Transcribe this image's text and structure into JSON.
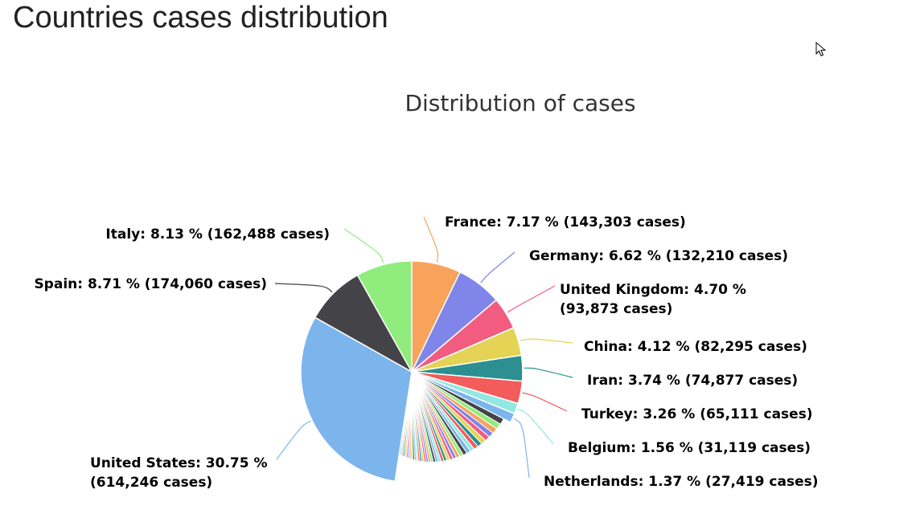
{
  "page": {
    "heading": "Countries cases distribution"
  },
  "chart_data": {
    "type": "pie",
    "title": "Distribution of cases",
    "series": [
      {
        "name": "United States",
        "percent": 30.75,
        "cases": 614246,
        "color": "#7cb5ec",
        "label_lines": [
          "United States: 30.75 %",
          "(614,246 cases)"
        ]
      },
      {
        "name": "Spain",
        "percent": 8.71,
        "cases": 174060,
        "color": "#434348",
        "label_lines": [
          "Spain: 8.71 % (174,060 cases)"
        ]
      },
      {
        "name": "Italy",
        "percent": 8.13,
        "cases": 162488,
        "color": "#90ed7d",
        "label_lines": [
          "Italy: 8.13 % (162,488 cases)"
        ]
      },
      {
        "name": "France",
        "percent": 7.17,
        "cases": 143303,
        "color": "#f7a35c",
        "label_lines": [
          "France: 7.17 % (143,303 cases)"
        ]
      },
      {
        "name": "Germany",
        "percent": 6.62,
        "cases": 132210,
        "color": "#8085e9",
        "label_lines": [
          "Germany: 6.62 % (132,210 cases)"
        ]
      },
      {
        "name": "United Kingdom",
        "percent": 4.7,
        "cases": 93873,
        "color": "#f15c80",
        "label_lines": [
          "United Kingdom: 4.70 %",
          "(93,873 cases)"
        ]
      },
      {
        "name": "China",
        "percent": 4.12,
        "cases": 82295,
        "color": "#e4d354",
        "label_lines": [
          "China: 4.12 % (82,295 cases)"
        ]
      },
      {
        "name": "Iran",
        "percent": 3.74,
        "cases": 74877,
        "color": "#2b908f",
        "label_lines": [
          "Iran: 3.74 % (74,877 cases)"
        ]
      },
      {
        "name": "Turkey",
        "percent": 3.26,
        "cases": 65111,
        "color": "#f45b5b",
        "label_lines": [
          "Turkey: 3.26 % (65,111 cases)"
        ]
      },
      {
        "name": "Belgium",
        "percent": 1.56,
        "cases": 31119,
        "color": "#91e8e1",
        "label_lines": [
          "Belgium: 1.56 % (31,119 cases)"
        ]
      },
      {
        "name": "Netherlands",
        "percent": 1.37,
        "cases": 27419,
        "color": "#7cb5ec",
        "label_lines": [
          "Netherlands: 1.37 % (27,419 cases)"
        ]
      }
    ],
    "others_percent": 19.87,
    "other_colors": [
      "#434348",
      "#90ed7d",
      "#f7a35c",
      "#8085e9",
      "#f15c80",
      "#e4d354",
      "#2b908f",
      "#f45b5b",
      "#91e8e1",
      "#7cb5ec"
    ]
  }
}
